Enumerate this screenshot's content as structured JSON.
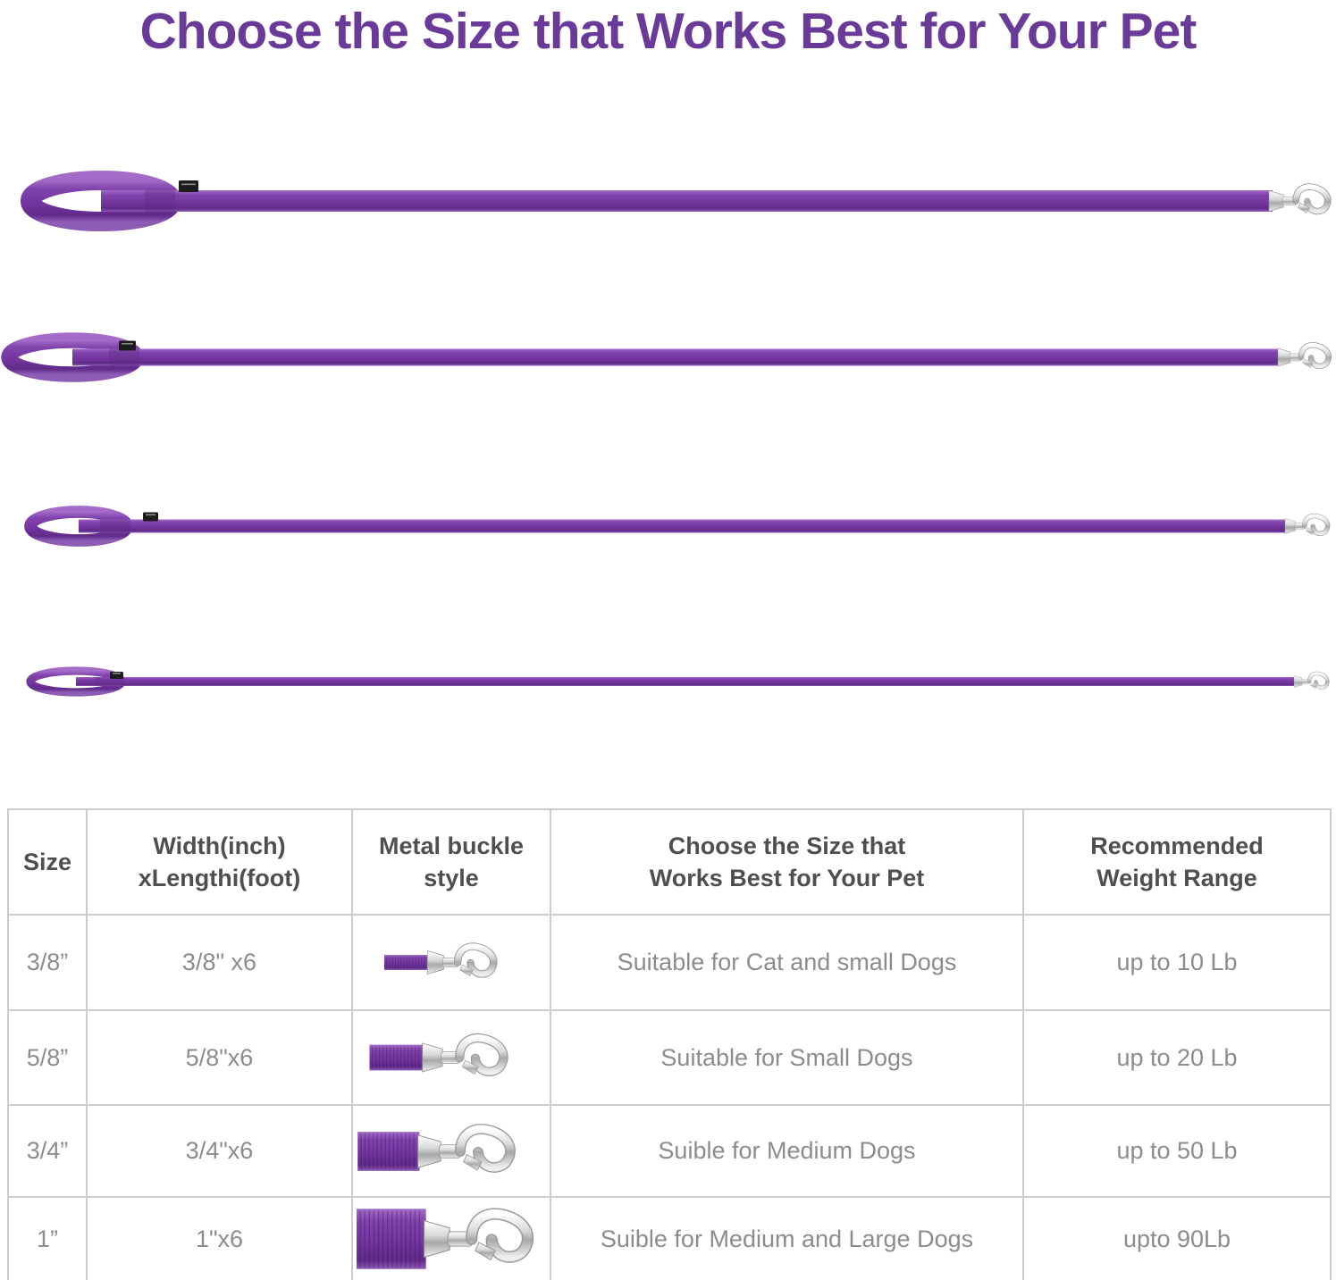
{
  "title": "Choose the Size that Works Best for Your Pet",
  "colors": {
    "title_purple": "#6a3a99",
    "leash_purple": "#74359f",
    "metal_silver": "#d9d9d9",
    "header_text": "#4f4f4f",
    "cell_text": "#8c8c8c",
    "table_border": "#cccccc"
  },
  "leash_photos": [
    {
      "icon": "leash-photo-widest",
      "description": "purple leash with handle loop, black tag and silver snap hook"
    },
    {
      "icon": "leash-photo-wide",
      "description": "purple leash with handle loop, black tag and silver snap hook"
    },
    {
      "icon": "leash-photo-narrow",
      "description": "purple leash with handle loop, black tag and silver snap hook"
    },
    {
      "icon": "leash-photo-narrowest",
      "description": "purple leash with handle loop, black tag and silver snap hook"
    }
  ],
  "table": {
    "headers": [
      "Size",
      "Width(inch)\nxLengthi(foot)",
      "Metal buckle\nstyle",
      "Choose the Size that\nWorks Best for Your Pet",
      "Recommended\nWeight Range"
    ],
    "rows": [
      {
        "size": "3/8”",
        "dimensions": "3/8\" x6",
        "buckle_icon": "snap-hook-small-icon",
        "suitability": "Suitable for Cat and small Dogs",
        "weight": "up to 10 Lb"
      },
      {
        "size": "5/8”",
        "dimensions": "5/8\"x6",
        "buckle_icon": "snap-hook-medium-icon",
        "suitability": "Suitable for Small Dogs",
        "weight": "up to 20 Lb"
      },
      {
        "size": "3/4”",
        "dimensions": "3/4\"x6",
        "buckle_icon": "snap-hook-large-icon",
        "suitability": "Suible for Medium Dogs",
        "weight": "up to 50 Lb"
      },
      {
        "size": "1”",
        "dimensions": "1\"x6",
        "buckle_icon": "snap-hook-xlarge-icon",
        "suitability": "Suible for Medium and Large Dogs",
        "weight": "upto 90Lb"
      }
    ]
  }
}
